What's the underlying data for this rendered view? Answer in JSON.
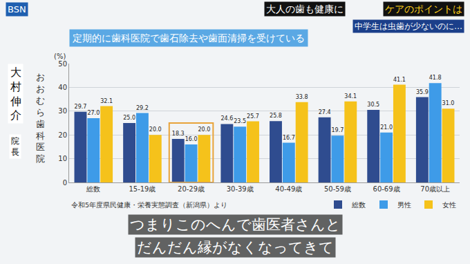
{
  "chart_data": {
    "type": "bar",
    "title": "定期的に歯科医院で歯石除去や歯面清掃を受けている",
    "y_label": "(%)",
    "categories": [
      "総数",
      "15-19歳",
      "20-29歳",
      "30-39歳",
      "40-49歳",
      "50-59歳",
      "60-69歳",
      "70歳以上"
    ],
    "series": [
      {
        "name": "総数",
        "color": "#2f4c8f",
        "values": [
          29.7,
          25.0,
          18.3,
          24.6,
          25.8,
          27.4,
          30.5,
          35.9
        ],
        "value_labels": [
          "29.7",
          "25.0",
          "18.3",
          "24.6",
          "25.8",
          "27.4",
          "30.5",
          "35.9"
        ]
      },
      {
        "name": "男性",
        "color": "#3e9be8",
        "values": [
          27.0,
          29.2,
          16.0,
          23.5,
          16.7,
          19.7,
          21.0,
          41.8
        ],
        "value_labels": [
          "27.0",
          "29.2",
          "16.0",
          "23.5",
          "16.7",
          "19.7",
          "21.0",
          "41.8"
        ]
      },
      {
        "name": "女性",
        "color": "#f5c21b",
        "values": [
          32.1,
          20.0,
          20.0,
          25.7,
          33.8,
          34.1,
          41.1,
          31.0
        ],
        "value_labels": [
          "32.1",
          "20.0",
          "20.0",
          "25.7",
          "33.8",
          "34.1",
          "41.1",
          "31.0"
        ]
      }
    ],
    "ylim": [
      0,
      50
    ],
    "yticks": [
      0,
      10,
      20,
      30,
      40,
      50
    ],
    "grid": true,
    "legend": "bottom right",
    "data_labels": true,
    "annotations": [
      "BSN",
      "大人の歯も健康に",
      "ケアのポイントは",
      "中学生は虫歯が少ないのに…",
      "大村伸介",
      "院長",
      "おおむら歯科医院",
      "令和5年度県民健康・栄養実態調査（新潟県）より",
      "つまりこのへんで歯医者さんと",
      "だんだん縁がなくなってきて"
    ]
  }
}
